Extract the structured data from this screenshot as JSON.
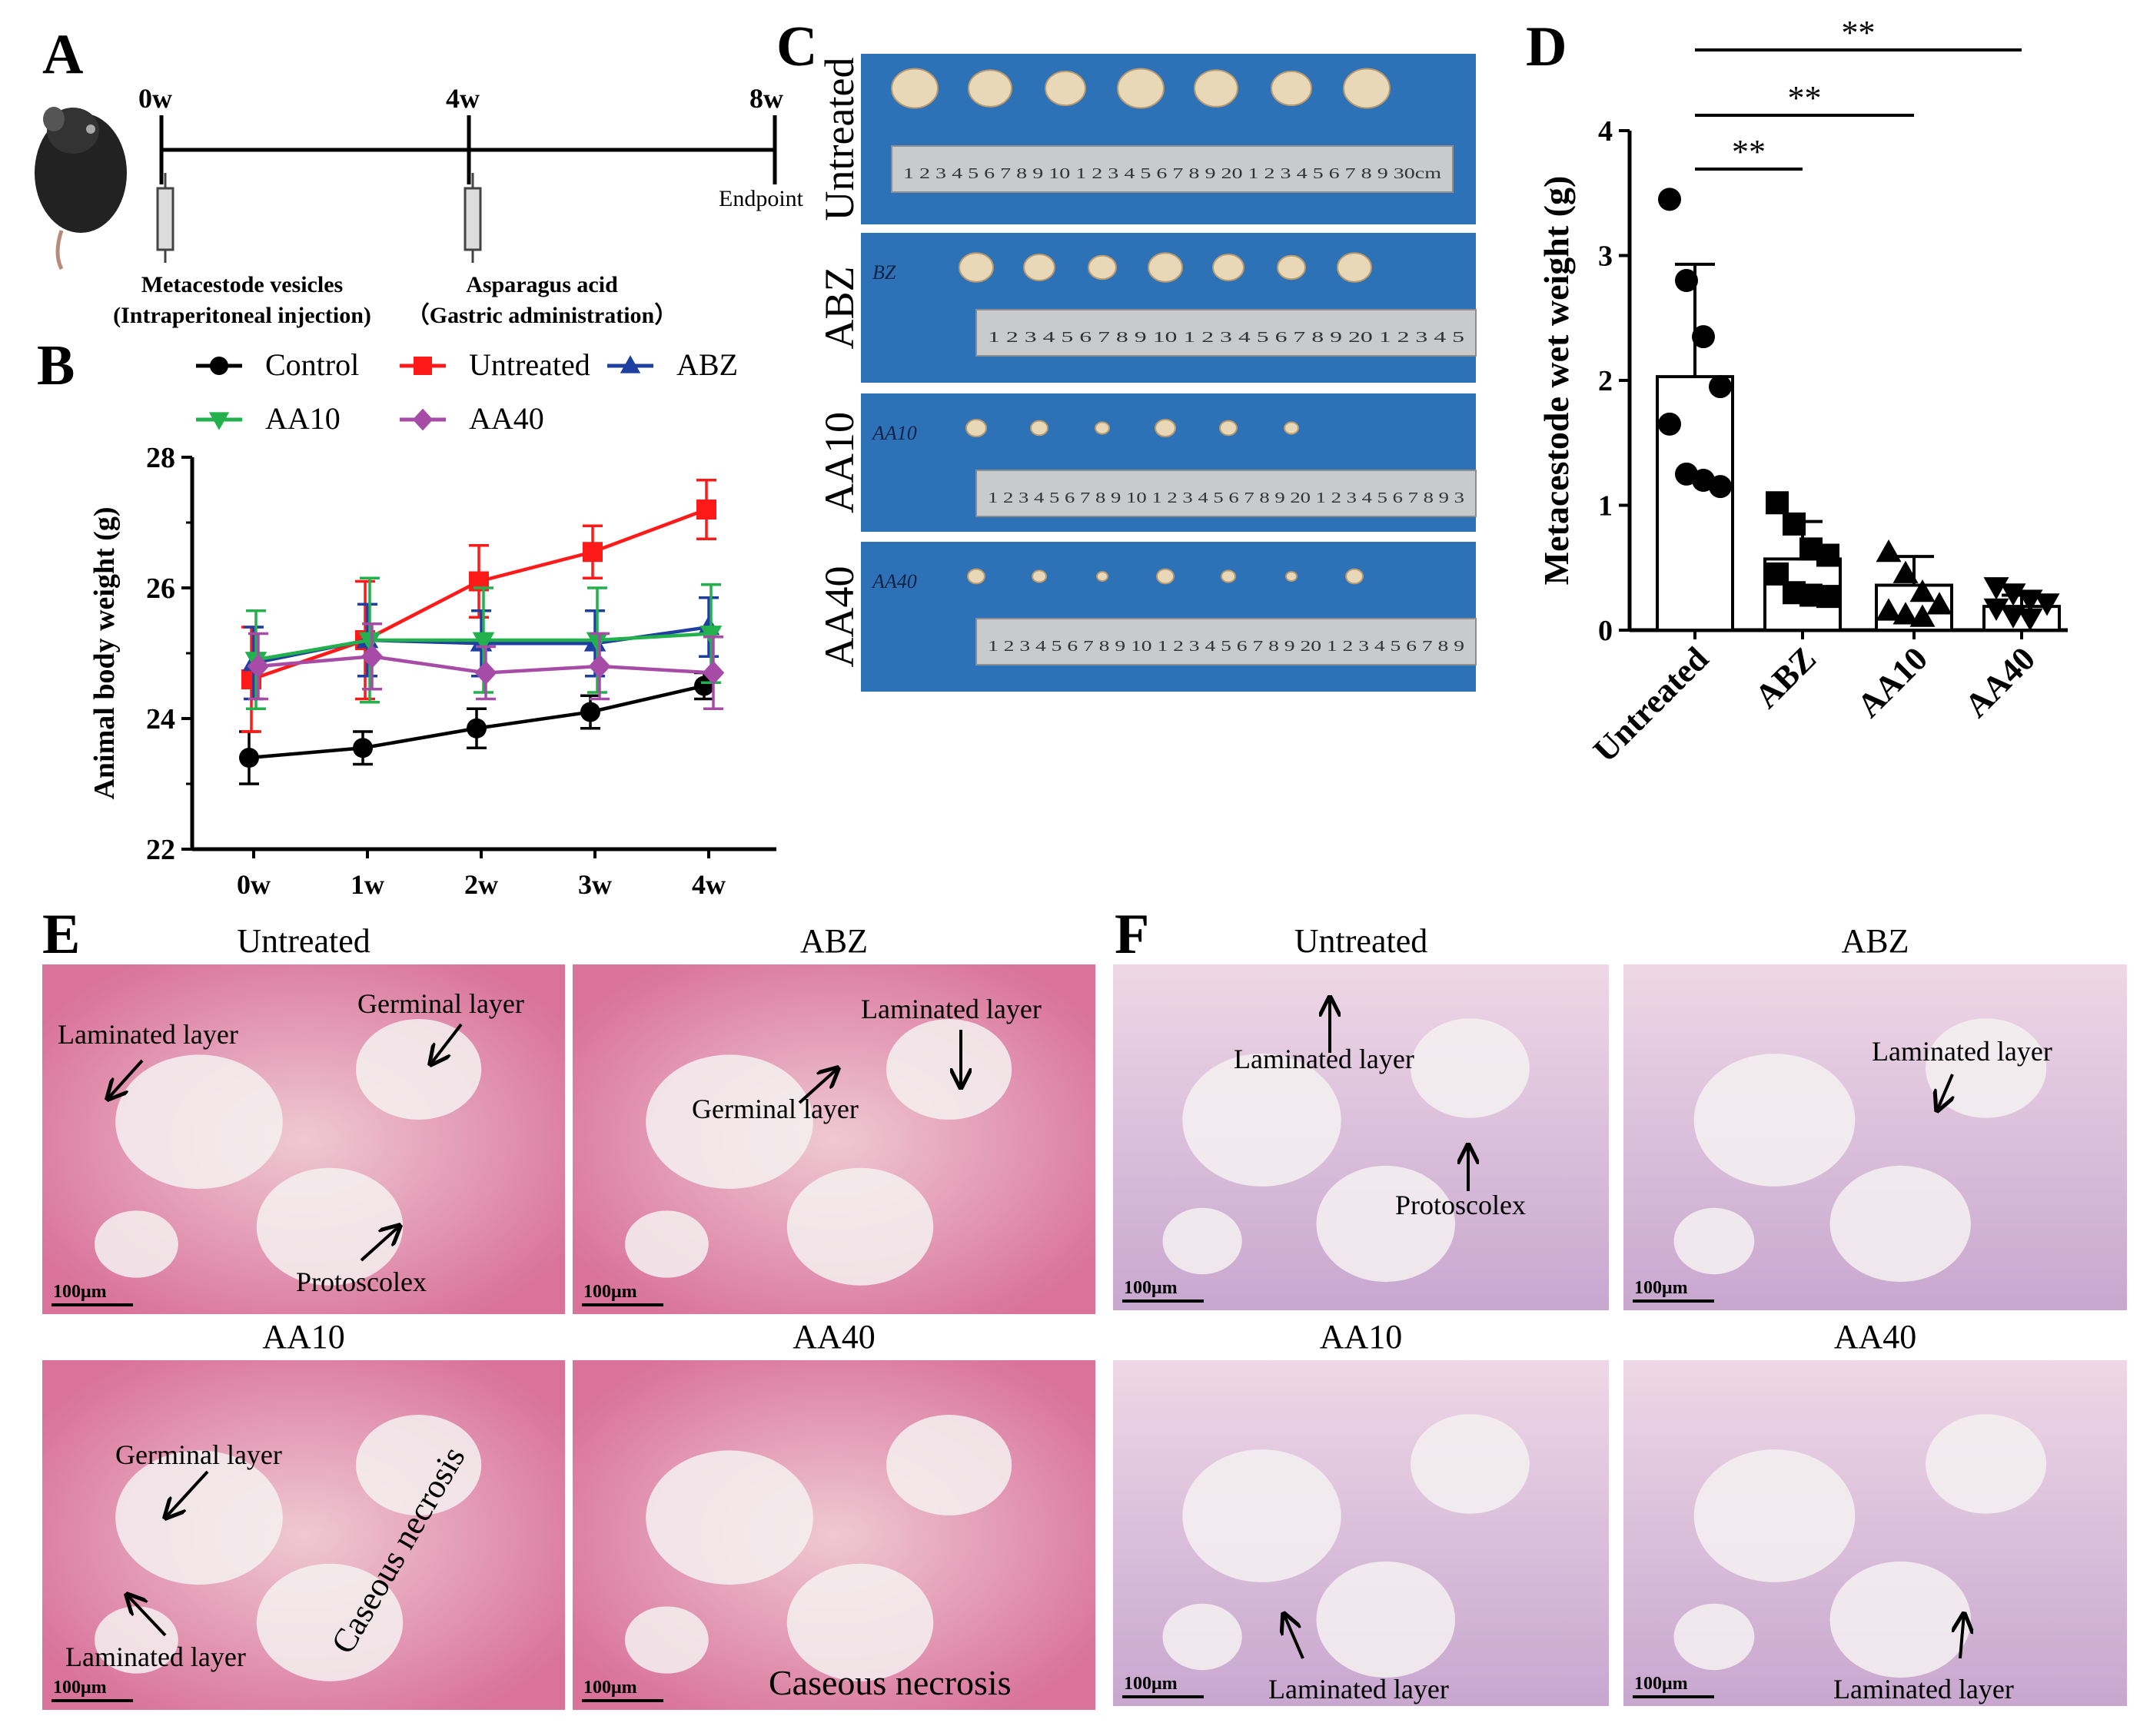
{
  "panels": {
    "A": {
      "label": "A",
      "timepoints": [
        "0w",
        "4w",
        "8w"
      ],
      "endpoint_label": "Endpoint",
      "step1": {
        "line1": "Metacestode vesicles",
        "line2": "(Intraperitoneal injection)"
      },
      "step2": {
        "line1": "Asparagus acid",
        "line2": "（Gastric administration）"
      }
    },
    "B": {
      "label": "B",
      "legend": [
        {
          "name": "Control",
          "color": "#000000",
          "marker": "circle"
        },
        {
          "name": "Untreated",
          "color": "#ff1a1a",
          "marker": "square"
        },
        {
          "name": "ABZ",
          "color": "#1f3fa0",
          "marker": "triangle-up"
        },
        {
          "name": "AA10",
          "color": "#22b14c",
          "marker": "triangle-down"
        },
        {
          "name": "AA40",
          "color": "#a64ca6",
          "marker": "diamond"
        }
      ]
    },
    "C": {
      "label": "C",
      "rows": [
        {
          "label": "Untreated",
          "note": "",
          "ruler": "1 2 3 4 5 6 7 8 9 10 1 2 3 4 5 6 7 8 9 20 1 2 3 4 5 6 7 8 9 30cm"
        },
        {
          "label": "ABZ",
          "note": "BZ",
          "ruler": "1 2 3 4 5 6 7 8 9 10 1 2 3 4 5 6 7 8 9 20 1 2 3 4 5"
        },
        {
          "label": "AA10",
          "note": "AA10",
          "ruler": "1 2 3 4 5 6 7 8 9 10 1 2 3 4 5 6 7 8 9 20 1 2 3 4 5 6 7 8 9 3"
        },
        {
          "label": "AA40",
          "note": "AA40",
          "ruler": "1 2 3 4 5 6 7 8 9 10 1 2 3 4 5 6 7 8 9 20 1 2 3 4 5 6 7 8 9"
        }
      ]
    },
    "D": {
      "label": "D",
      "sig": [
        "**",
        "**",
        "**"
      ]
    },
    "E": {
      "label": "E",
      "tiles": [
        {
          "title": "Untreated",
          "scale": "100μm",
          "annotations": [
            "Laminated layer",
            "Germinal layer",
            "Protoscolex"
          ]
        },
        {
          "title": "ABZ",
          "scale": "100μm",
          "annotations": [
            "Laminated layer",
            "Germinal layer"
          ]
        },
        {
          "title": "AA10",
          "scale": "100μm",
          "annotations": [
            "Germinal layer",
            "Laminated layer",
            "Caseous necrosis"
          ]
        },
        {
          "title": "AA40",
          "scale": "100μm",
          "annotations": [
            "Caseous necrosis"
          ]
        }
      ]
    },
    "F": {
      "label": "F",
      "tiles": [
        {
          "title": "Untreated",
          "scale": "100μm",
          "annotations": [
            "Laminated layer",
            "Protoscolex"
          ]
        },
        {
          "title": "ABZ",
          "scale": "100μm",
          "annotations": [
            "Laminated layer"
          ]
        },
        {
          "title": "AA10",
          "scale": "100μm",
          "annotations": [
            "Laminated layer"
          ]
        },
        {
          "title": "AA40",
          "scale": "100μm",
          "annotations": [
            "Laminated layer"
          ]
        }
      ]
    }
  },
  "chart_data": [
    {
      "type": "line",
      "panel": "B",
      "title": "",
      "xlabel": "",
      "ylabel": "Animal body weight (g)",
      "categories": [
        "0w",
        "1w",
        "2w",
        "3w",
        "4w"
      ],
      "ylim": [
        22,
        28
      ],
      "yticks": [
        22,
        24,
        26,
        28
      ],
      "series": [
        {
          "name": "Control",
          "values": [
            23.4,
            23.55,
            23.85,
            24.1,
            24.5
          ],
          "err": [
            0.4,
            0.25,
            0.3,
            0.25,
            0.2
          ]
        },
        {
          "name": "Untreated",
          "values": [
            24.6,
            25.2,
            26.1,
            26.55,
            27.2
          ],
          "err": [
            0.8,
            0.9,
            0.55,
            0.4,
            0.45
          ]
        },
        {
          "name": "ABZ",
          "values": [
            24.85,
            25.2,
            25.15,
            25.15,
            25.4
          ],
          "err": [
            0.55,
            0.55,
            0.5,
            0.5,
            0.45
          ]
        },
        {
          "name": "AA10",
          "values": [
            24.9,
            25.2,
            25.2,
            25.2,
            25.3
          ],
          "err": [
            0.75,
            0.95,
            0.8,
            0.8,
            0.75
          ]
        },
        {
          "name": "AA40",
          "values": [
            24.8,
            24.95,
            24.7,
            24.8,
            24.7
          ],
          "err": [
            0.5,
            0.5,
            0.4,
            0.5,
            0.55
          ]
        }
      ]
    },
    {
      "type": "bar",
      "panel": "D",
      "title": "",
      "xlabel": "",
      "ylabel": "Metacestode wet weight (g)",
      "categories": [
        "Untreated",
        "ABZ",
        "AA10",
        "AA40"
      ],
      "values": [
        2.03,
        0.57,
        0.36,
        0.19
      ],
      "sd": [
        0.9,
        0.3,
        0.23,
        0.09
      ],
      "ylim": [
        0,
        4
      ],
      "yticks": [
        0,
        1,
        2,
        3,
        4
      ],
      "points": [
        [
          3.45,
          2.8,
          2.35,
          1.95,
          1.65,
          1.25,
          1.2,
          1.15
        ],
        [
          1.02,
          0.85,
          0.65,
          0.6,
          0.45,
          0.3,
          0.28,
          0.27
        ],
        [
          0.62,
          0.45,
          0.3,
          0.2,
          0.15,
          0.12,
          0.1
        ],
        [
          0.35,
          0.3,
          0.25,
          0.22,
          0.18,
          0.12,
          0.1
        ]
      ],
      "markers": [
        "circle",
        "square",
        "triangle-up",
        "triangle-down"
      ],
      "comparisons": [
        {
          "from": "Untreated",
          "to": "ABZ",
          "label": "**"
        },
        {
          "from": "Untreated",
          "to": "AA10",
          "label": "**"
        },
        {
          "from": "Untreated",
          "to": "AA40",
          "label": "**"
        }
      ]
    }
  ]
}
